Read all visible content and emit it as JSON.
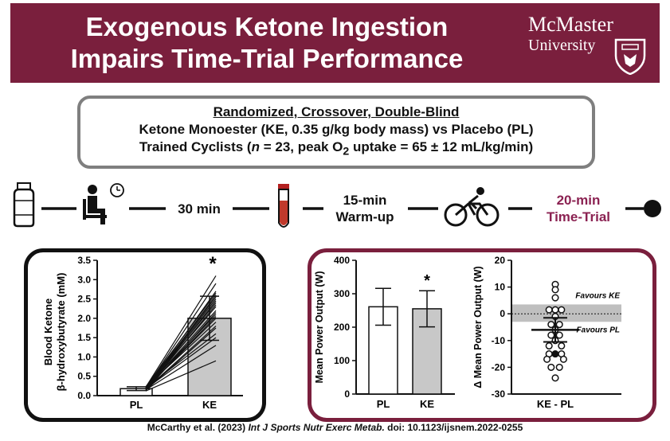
{
  "header": {
    "title_line1": "Exogenous Ketone Ingestion",
    "title_line2": "Impairs Time-Trial Performance",
    "logo_name": "McMaster",
    "logo_university": "University"
  },
  "design": {
    "line1": "Randomized, Crossover, Double-Blind",
    "line2": "Ketone Monoester (KE, 0.35 g/kg body mass) vs Placebo (PL)",
    "line3_prefix": "Trained Cyclists (",
    "line3_n": "n",
    "line3_mid": " = 23, peak O",
    "line3_sub": "2",
    "line3_suffix": " uptake = 65 ± 12 mL/kg/min)"
  },
  "timeline": {
    "step_30": "30 min",
    "warmup_1": "15-min",
    "warmup_2": "Warm-up",
    "tt_1": "20-min",
    "tt_2": "Time-Trial",
    "accent": "#8b2252"
  },
  "chart_data": [
    {
      "type": "bar",
      "categories": [
        "PL",
        "KE"
      ],
      "values": [
        0.18,
        2.0
      ],
      "errors": [
        0.05,
        0.57
      ],
      "ylabel": "Blood Ketone",
      "ylabel2": "β-hydroxybutyrate (mM)",
      "ylim": [
        0.0,
        3.5
      ],
      "yticks": [
        "0.0",
        "0.5",
        "1.0",
        "1.5",
        "2.0",
        "2.5",
        "3.0",
        "3.5"
      ],
      "significance": "*",
      "individual_pairs": [
        [
          0.12,
          0.9
        ],
        [
          0.15,
          1.3
        ],
        [
          0.18,
          1.5
        ],
        [
          0.2,
          1.6
        ],
        [
          0.14,
          1.75
        ],
        [
          0.16,
          1.8
        ],
        [
          0.22,
          1.9
        ],
        [
          0.19,
          2.0
        ],
        [
          0.17,
          2.05
        ],
        [
          0.21,
          2.1
        ],
        [
          0.13,
          2.15
        ],
        [
          0.18,
          2.2
        ],
        [
          0.2,
          2.3
        ],
        [
          0.16,
          2.35
        ],
        [
          0.22,
          2.4
        ],
        [
          0.15,
          2.45
        ],
        [
          0.19,
          2.5
        ],
        [
          0.21,
          2.55
        ],
        [
          0.17,
          2.6
        ],
        [
          0.23,
          2.65
        ],
        [
          0.18,
          2.7
        ],
        [
          0.2,
          2.9
        ],
        [
          0.22,
          3.1
        ]
      ]
    },
    {
      "type": "bar",
      "categories": [
        "PL",
        "KE"
      ],
      "values": [
        261,
        255
      ],
      "errors": [
        55,
        54
      ],
      "ylabel": "Mean Power Output (W)",
      "ylim": [
        0,
        400
      ],
      "yticks": [
        "0",
        "100",
        "200",
        "300",
        "400"
      ],
      "significance": "*"
    },
    {
      "type": "scatter",
      "categories": [
        "KE - PL"
      ],
      "ylabel": "Δ Mean Power Output (W)",
      "ylim": [
        -30,
        20
      ],
      "yticks": [
        "-30",
        "-20",
        "-10",
        "0",
        "10",
        "20"
      ],
      "mean": -6,
      "sd": 4.5,
      "band": [
        -3,
        3.5
      ],
      "band_label_top": "Favours KE",
      "band_label_bottom": "Favours PL",
      "points": [
        {
          "x": 0,
          "y": 11,
          "filled": false
        },
        {
          "x": 0,
          "y": 9,
          "filled": false
        },
        {
          "x": 0,
          "y": 6,
          "filled": false
        },
        {
          "x": -3,
          "y": 1.5,
          "filled": false
        },
        {
          "x": 0,
          "y": 1.5,
          "filled": false
        },
        {
          "x": 3,
          "y": 1.5,
          "filled": false
        },
        {
          "x": 0,
          "y": -1,
          "filled": false
        },
        {
          "x": -2,
          "y": -4,
          "filled": false
        },
        {
          "x": 2,
          "y": -4,
          "filled": false
        },
        {
          "x": 0,
          "y": -6,
          "filled": false
        },
        {
          "x": -2,
          "y": -8,
          "filled": false
        },
        {
          "x": 2,
          "y": -8,
          "filled": false
        },
        {
          "x": 0,
          "y": -10,
          "filled": false
        },
        {
          "x": -3,
          "y": -12,
          "filled": false
        },
        {
          "x": 3,
          "y": -12,
          "filled": false
        },
        {
          "x": -3,
          "y": -15,
          "filled": false
        },
        {
          "x": 0,
          "y": -15,
          "filled": true
        },
        {
          "x": 3,
          "y": -15,
          "filled": false
        },
        {
          "x": -4,
          "y": -17,
          "filled": false
        },
        {
          "x": 4,
          "y": -17,
          "filled": false
        },
        {
          "x": -2,
          "y": -20,
          "filled": false
        },
        {
          "x": 2,
          "y": -20,
          "filled": false
        },
        {
          "x": 0,
          "y": -24,
          "filled": false
        }
      ]
    }
  ],
  "citation": {
    "authors": "McCarthy et al. (2023) ",
    "journal": "Int J Sports Nutr Exerc Metab.",
    "doi": " doi: 10.1123/ijsnem.2022-0255"
  }
}
